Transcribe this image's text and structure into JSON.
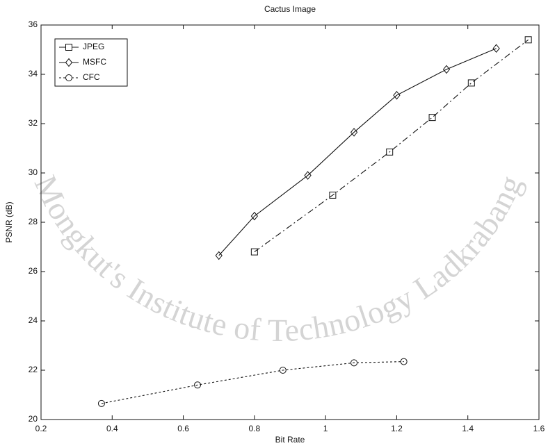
{
  "chart_data": {
    "type": "line",
    "title": "Cactus Image",
    "xlabel": "Bit Rate",
    "ylabel": "PSNR (dB)",
    "watermark": "Mongkut's Institute of Technology Ladkrabang",
    "xlim": [
      0.2,
      1.6
    ],
    "xticks": [
      0.2,
      0.4,
      0.6,
      0.8,
      1,
      1.2,
      1.4,
      1.6
    ],
    "ylim": [
      20,
      36
    ],
    "yticks": [
      20,
      22,
      24,
      26,
      28,
      30,
      32,
      34,
      36
    ],
    "grid": false,
    "legend": "upper left",
    "series": [
      {
        "name": "JPEG",
        "color": "#111111",
        "marker": "square",
        "linestyle": "dashdot",
        "x": [
          0.8,
          1.02,
          1.18,
          1.3,
          1.41,
          1.57
        ],
        "values": [
          26.8,
          29.1,
          30.85,
          32.25,
          33.65,
          35.4
        ]
      },
      {
        "name": "MSFC",
        "color": "#111111",
        "marker": "diamond",
        "linestyle": "solid",
        "x": [
          0.7,
          0.8,
          0.95,
          1.08,
          1.2,
          1.34,
          1.48
        ],
        "values": [
          26.65,
          28.25,
          29.9,
          31.65,
          33.15,
          34.2,
          35.05
        ]
      },
      {
        "name": "CFC",
        "color": "#111111",
        "marker": "circle",
        "linestyle": "dotted",
        "x": [
          0.37,
          0.64,
          0.88,
          1.08,
          1.22
        ],
        "values": [
          20.65,
          21.4,
          22.0,
          22.3,
          22.35
        ]
      }
    ]
  }
}
